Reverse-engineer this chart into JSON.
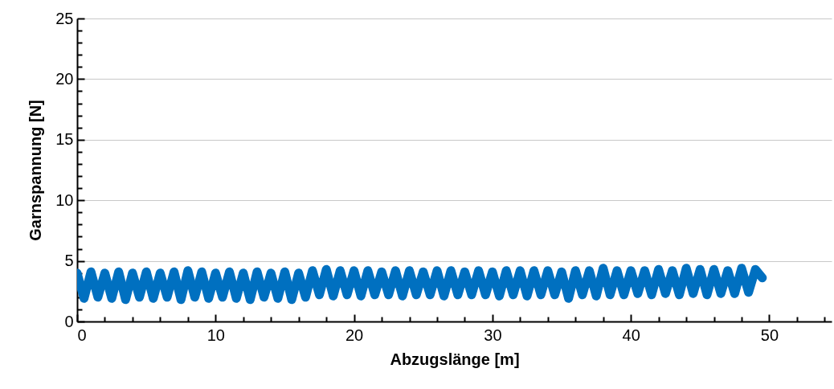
{
  "chart_data": {
    "type": "line",
    "xlabel": "Abzugslänge [m]",
    "ylabel": "Garnspannung [N]",
    "xlim": [
      0,
      54.5
    ],
    "ylim": [
      0,
      25
    ],
    "xticks": [
      0,
      {
        "value": 2,
        "label": null
      },
      {
        "value": 4,
        "label": null
      },
      {
        "value": 6,
        "label": null
      },
      {
        "value": 8,
        "label": null
      },
      10,
      {
        "value": 12,
        "label": null
      },
      {
        "value": 14,
        "label": null
      },
      {
        "value": 16,
        "label": null
      },
      {
        "value": 18,
        "label": null
      },
      20,
      {
        "value": 22,
        "label": null
      },
      {
        "value": 24,
        "label": null
      },
      {
        "value": 26,
        "label": null
      },
      {
        "value": 28,
        "label": null
      },
      30,
      {
        "value": 32,
        "label": null
      },
      {
        "value": 34,
        "label": null
      },
      {
        "value": 36,
        "label": null
      },
      {
        "value": 38,
        "label": null
      },
      40,
      {
        "value": 42,
        "label": null
      },
      {
        "value": 44,
        "label": null
      },
      {
        "value": 46,
        "label": null
      },
      {
        "value": 48,
        "label": null
      },
      50,
      {
        "value": 52,
        "label": null
      },
      {
        "value": 54,
        "label": null
      }
    ],
    "yticks": [
      0,
      {
        "value": 1,
        "label": null
      },
      {
        "value": 2,
        "label": null
      },
      {
        "value": 3,
        "label": null
      },
      {
        "value": 4,
        "label": null
      },
      5,
      {
        "value": 6,
        "label": null
      },
      {
        "value": 7,
        "label": null
      },
      {
        "value": 8,
        "label": null
      },
      {
        "value": 9,
        "label": null
      },
      10,
      {
        "value": 11,
        "label": null
      },
      {
        "value": 12,
        "label": null
      },
      {
        "value": 13,
        "label": null
      },
      {
        "value": 14,
        "label": null
      },
      15,
      {
        "value": 16,
        "label": null
      },
      {
        "value": 17,
        "label": null
      },
      {
        "value": 18,
        "label": null
      },
      {
        "value": 19,
        "label": null
      },
      20,
      {
        "value": 21,
        "label": null
      },
      {
        "value": 22,
        "label": null
      },
      {
        "value": 23,
        "label": null
      },
      {
        "value": 24,
        "label": null
      },
      25
    ],
    "grid": "y",
    "line_style": "solid",
    "x": [
      0,
      0.5,
      1,
      1.5,
      2,
      2.5,
      3,
      3.5,
      4,
      4.5,
      5,
      5.5,
      6,
      6.5,
      7,
      7.5,
      8,
      8.5,
      9,
      9.5,
      10,
      10.5,
      11,
      11.5,
      12,
      12.5,
      13,
      13.5,
      14,
      14.5,
      15,
      15.5,
      16,
      16.5,
      17,
      17.5,
      18,
      18.5,
      19,
      19.5,
      20,
      20.5,
      21,
      21.5,
      22,
      22.5,
      23,
      23.5,
      24,
      24.5,
      25,
      25.5,
      26,
      26.5,
      27,
      27.5,
      28,
      28.5,
      29,
      29.5,
      30,
      30.5,
      31,
      31.5,
      32,
      32.5,
      33,
      33.5,
      34,
      34.5,
      35,
      35.5,
      36,
      36.5,
      37,
      37.5,
      38,
      38.5,
      39,
      39.5,
      40,
      40.5,
      41,
      41.5,
      42,
      42.5,
      43,
      43.5,
      44,
      44.5,
      45,
      45.5,
      46,
      46.5,
      47,
      47.5,
      48,
      48.5,
      49,
      49.5
    ],
    "series": [
      {
        "color": "#0070c0",
        "values": [
          4.0,
          1.9,
          4.1,
          2.0,
          4.0,
          1.9,
          4.1,
          1.8,
          4.0,
          2.0,
          4.1,
          1.9,
          4.0,
          2.0,
          4.1,
          1.8,
          4.2,
          2.0,
          4.1,
          1.9,
          4.0,
          2.0,
          4.1,
          1.9,
          4.0,
          1.8,
          4.1,
          2.0,
          4.0,
          1.9,
          4.1,
          1.8,
          4.0,
          2.0,
          4.2,
          2.2,
          4.3,
          2.1,
          4.2,
          2.2,
          4.2,
          2.1,
          4.2,
          2.2,
          4.1,
          2.2,
          4.2,
          2.1,
          4.2,
          2.2,
          4.1,
          2.2,
          4.2,
          2.1,
          4.2,
          2.2,
          4.1,
          2.2,
          4.2,
          2.2,
          4.1,
          2.1,
          4.2,
          2.2,
          4.2,
          2.1,
          4.2,
          2.2,
          4.2,
          2.2,
          4.1,
          1.9,
          4.2,
          2.2,
          4.2,
          2.1,
          4.4,
          2.2,
          4.2,
          2.2,
          4.2,
          2.3,
          4.2,
          2.2,
          4.3,
          2.3,
          4.2,
          2.2,
          4.4,
          2.3,
          4.3,
          2.2,
          4.3,
          2.3,
          4.2,
          2.3,
          4.4,
          2.4,
          4.3,
          3.6
        ]
      }
    ]
  }
}
